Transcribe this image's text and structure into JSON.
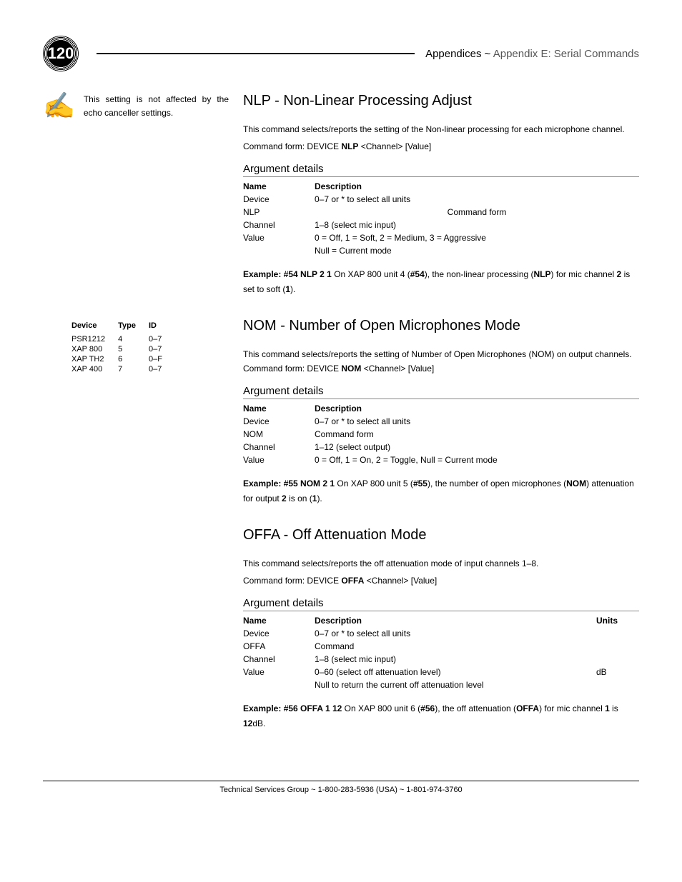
{
  "page_number": "120",
  "header": {
    "prefix": "Appendices ~ ",
    "suffix": "Appendix E: Serial Commands"
  },
  "sidebar": {
    "note": "This setting is not affected by the echo canceller settings.",
    "device_table": {
      "headers": [
        "Device",
        "Type",
        "ID"
      ],
      "rows": [
        [
          "PSR1212",
          "4",
          "0–7"
        ],
        [
          "XAP 800",
          "5",
          "0–7"
        ],
        [
          "XAP TH2",
          "6",
          "0–F"
        ],
        [
          "XAP 400",
          "7",
          "0–7"
        ]
      ]
    }
  },
  "sections": [
    {
      "title": "NLP - Non-Linear Processing Adjust",
      "desc": "This command selects/reports the setting of the Non-linear processing for each microphone channel.",
      "cmd_prefix": "Command form: DEVICE ",
      "cmd_bold": "NLP",
      "cmd_suffix": " <Channel> [Value]",
      "arg_heading": "Argument details",
      "args": {
        "headers": [
          "Name",
          "Description"
        ],
        "rows": [
          [
            "Device",
            "0–7 or * to select all units"
          ],
          [
            "NLP",
            "Command form"
          ],
          [
            "Channel",
            "1–8 (select mic input)"
          ],
          [
            "Value",
            "0 = Off, 1 = Soft, 2 = Medium, 3 = Aggressive"
          ],
          [
            "",
            "Null = Current mode"
          ]
        ],
        "centered_row": 1
      },
      "example": {
        "label": "Example: ",
        "cmd": "#54 NLP 2 1",
        "parts": [
          {
            "t": "  On XAP 800 unit 4 (",
            "b": false
          },
          {
            "t": "#54",
            "b": true
          },
          {
            "t": "), the non-linear processing (",
            "b": false
          },
          {
            "t": "NLP",
            "b": true
          },
          {
            "t": ") for mic channel ",
            "b": false
          },
          {
            "t": "2",
            "b": true
          },
          {
            "t": " is set to soft (",
            "b": false
          },
          {
            "t": "1",
            "b": true
          },
          {
            "t": ").",
            "b": false
          }
        ]
      }
    },
    {
      "title": "NOM - Number of Open Microphones Mode",
      "desc": "This command selects/reports the setting of Number of Open Microphones (NOM) on output channels. Command form: DEVICE ",
      "cmd_inline_bold": "NOM",
      "cmd_inline_suffix": " <Channel> [Value]",
      "arg_heading": "Argument details",
      "args": {
        "headers": [
          "Name",
          "Description"
        ],
        "rows": [
          [
            "Device",
            "0–7 or * to select all units"
          ],
          [
            "NOM",
            "Command form"
          ],
          [
            "Channel",
            "1–12 (select output)"
          ],
          [
            "Value",
            "0 = Off, 1 = On, 2 = Toggle, Null = Current mode"
          ]
        ]
      },
      "example": {
        "label": "Example: ",
        "cmd": "#55 NOM 2 1",
        "parts": [
          {
            "t": "  On XAP 800 unit 5 (",
            "b": false
          },
          {
            "t": "#55",
            "b": true
          },
          {
            "t": "), the number of open microphones (",
            "b": false
          },
          {
            "t": "NOM",
            "b": true
          },
          {
            "t": ") attenuation for output ",
            "b": false
          },
          {
            "t": "2",
            "b": true
          },
          {
            "t": " is on (",
            "b": false
          },
          {
            "t": "1",
            "b": true
          },
          {
            "t": ").",
            "b": false
          }
        ]
      }
    },
    {
      "title": "OFFA - Off Attenuation Mode",
      "desc": "This command selects/reports the off attenuation mode of input channels 1–8.",
      "cmd_prefix": "Command form: DEVICE ",
      "cmd_bold": "OFFA",
      "cmd_suffix": " <Channel> [Value]",
      "arg_heading": "Argument details",
      "args": {
        "headers": [
          "Name",
          "Description",
          "Units"
        ],
        "rows": [
          [
            "Device",
            "0–7 or * to select all units",
            ""
          ],
          [
            "OFFA",
            "Command",
            ""
          ],
          [
            "Channel",
            "1–8 (select mic input)",
            ""
          ],
          [
            "Value",
            "0–60 (select off attenuation level)",
            "dB"
          ],
          [
            "",
            "Null to return the current off attenuation level",
            ""
          ]
        ]
      },
      "example": {
        "label": "Example: ",
        "cmd": "#56 OFFA 1 12",
        "parts": [
          {
            "t": "  On XAP 800 unit 6 (",
            "b": false
          },
          {
            "t": "#56",
            "b": true
          },
          {
            "t": "), the off attenuation (",
            "b": false
          },
          {
            "t": "OFFA",
            "b": true
          },
          {
            "t": ") for mic channel ",
            "b": false
          },
          {
            "t": "1",
            "b": true
          },
          {
            "t": " is ",
            "b": false
          },
          {
            "t": "12",
            "b": true
          },
          {
            "t": "dB.",
            "b": false
          }
        ]
      }
    }
  ],
  "footer": "Technical Services Group ~ 1-800-283-5936 (USA) ~ 1-801-974-3760"
}
